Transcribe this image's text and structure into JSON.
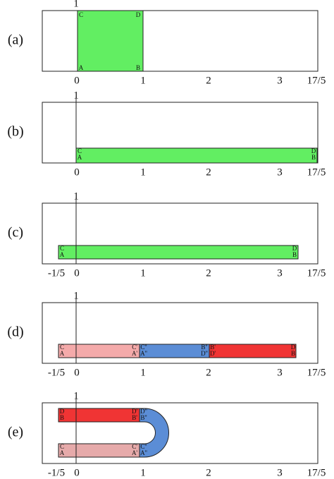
{
  "panels": [
    {
      "label": "(a)",
      "y_tick": "1",
      "x_ticks": [
        "0",
        "1",
        "2",
        "3",
        "17/5"
      ],
      "corners": [
        "C",
        "D",
        "A",
        "B"
      ]
    },
    {
      "label": "(b)",
      "y_tick": "1",
      "x_ticks": [
        "0",
        "1",
        "2",
        "3",
        "17/5"
      ],
      "corners": [
        "C",
        "A",
        "D",
        "B"
      ]
    },
    {
      "label": "(c)",
      "y_tick": "1",
      "x_ticks": [
        "-1/5",
        "0",
        "1",
        "2",
        "3",
        "17/5"
      ],
      "corners": [
        "C",
        "A",
        "D",
        "B"
      ]
    },
    {
      "label": "(d)",
      "y_tick": "1",
      "x_ticks": [
        "-1/5",
        "0",
        "1",
        "2",
        "3",
        "17/5"
      ],
      "corners": [
        "C",
        "A",
        "C'",
        "A'",
        "C''",
        "A''",
        "B''",
        "D''",
        "B'",
        "D'",
        "D",
        "B"
      ]
    },
    {
      "label": "(e)",
      "y_tick": "1",
      "x_ticks": [
        "-1/5",
        "0",
        "1",
        "2",
        "3",
        "17/5"
      ],
      "corners": [
        "D",
        "B",
        "D'",
        "B'",
        "D''",
        "B''",
        "C",
        "A",
        "C'",
        "A'",
        "C''",
        "A''"
      ]
    }
  ]
}
